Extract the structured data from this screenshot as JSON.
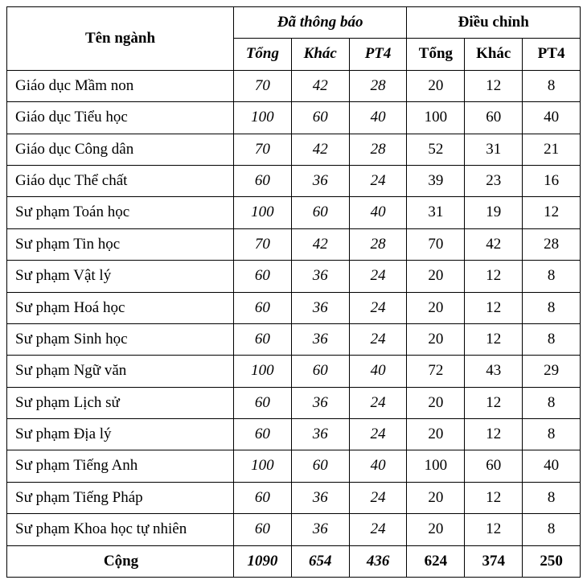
{
  "headers": {
    "name": "Tên ngành",
    "group1": "Đã thông báo",
    "group2": "Điều chỉnh",
    "sub": {
      "tong1": "Tổng",
      "khac1": "Khác",
      "pt4_1": "PT4",
      "tong2": "Tổng",
      "khac2": "Khác",
      "pt4_2": "PT4"
    }
  },
  "rows": [
    {
      "name": "Giáo dục Mầm non",
      "a": "70",
      "b": "42",
      "c": "28",
      "d": "20",
      "e": "12",
      "f": "8"
    },
    {
      "name": "Giáo dục Tiểu học",
      "a": "100",
      "b": "60",
      "c": "40",
      "d": "100",
      "e": "60",
      "f": "40"
    },
    {
      "name": "Giáo dục Công dân",
      "a": "70",
      "b": "42",
      "c": "28",
      "d": "52",
      "e": "31",
      "f": "21"
    },
    {
      "name": "Giáo dục Thể chất",
      "a": "60",
      "b": "36",
      "c": "24",
      "d": "39",
      "e": "23",
      "f": "16"
    },
    {
      "name": "Sư phạm Toán học",
      "a": "100",
      "b": "60",
      "c": "40",
      "d": "31",
      "e": "19",
      "f": "12"
    },
    {
      "name": "Sư phạm Tin học",
      "a": "70",
      "b": "42",
      "c": "28",
      "d": "70",
      "e": "42",
      "f": "28"
    },
    {
      "name": "Sư phạm Vật lý",
      "a": "60",
      "b": "36",
      "c": "24",
      "d": "20",
      "e": "12",
      "f": "8"
    },
    {
      "name": "Sư phạm Hoá học",
      "a": "60",
      "b": "36",
      "c": "24",
      "d": "20",
      "e": "12",
      "f": "8"
    },
    {
      "name": "Sư phạm Sinh học",
      "a": "60",
      "b": "36",
      "c": "24",
      "d": "20",
      "e": "12",
      "f": "8"
    },
    {
      "name": "Sư phạm Ngữ văn",
      "a": "100",
      "b": "60",
      "c": "40",
      "d": "72",
      "e": "43",
      "f": "29"
    },
    {
      "name": "Sư phạm Lịch sử",
      "a": "60",
      "b": "36",
      "c": "24",
      "d": "20",
      "e": "12",
      "f": "8"
    },
    {
      "name": "Sư phạm Địa lý",
      "a": "60",
      "b": "36",
      "c": "24",
      "d": "20",
      "e": "12",
      "f": "8"
    },
    {
      "name": "Sư phạm Tiếng Anh",
      "a": "100",
      "b": "60",
      "c": "40",
      "d": "100",
      "e": "60",
      "f": "40"
    },
    {
      "name": "Sư phạm Tiếng Pháp",
      "a": "60",
      "b": "36",
      "c": "24",
      "d": "20",
      "e": "12",
      "f": "8"
    },
    {
      "name": "Sư phạm Khoa học tự nhiên",
      "a": "60",
      "b": "36",
      "c": "24",
      "d": "20",
      "e": "12",
      "f": "8"
    }
  ],
  "total": {
    "name": "Cộng",
    "a": "1090",
    "b": "654",
    "c": "436",
    "d": "624",
    "e": "374",
    "f": "250"
  }
}
